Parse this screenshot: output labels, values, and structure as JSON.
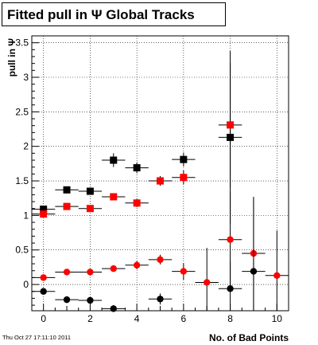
{
  "chart_data": {
    "type": "scatter",
    "title": "Fitted pull in  Ψ   Global Tracks",
    "xlabel": "No. of Bad Points",
    "ylabel": "pull in Ψ",
    "xlim": [
      -0.5,
      10.5
    ],
    "ylim": [
      -0.38,
      3.6
    ],
    "x_ticks": [
      0,
      2,
      4,
      6,
      8,
      10
    ],
    "y_ticks": [
      0,
      0.5,
      1,
      1.5,
      2,
      2.5,
      3,
      3.5
    ],
    "x_tick_labels": [
      "0",
      "2",
      "4",
      "6",
      "8",
      "10"
    ],
    "y_tick_labels": [
      "0",
      "0.5",
      "1",
      "1.5",
      "2",
      "2.5",
      "3",
      "3.5"
    ],
    "grid": true,
    "legend": "none",
    "series": [
      {
        "marker": "square",
        "color": "#000000",
        "x": [
          0,
          1,
          2,
          3,
          4,
          5,
          6,
          8
        ],
        "y": [
          1.09,
          1.37,
          1.35,
          1.8,
          1.69,
          1.5,
          1.81,
          2.13
        ],
        "yerr": [
          0.04,
          0.04,
          0.04,
          0.1,
          0.08,
          0.06,
          0.1,
          1.25
        ]
      },
      {
        "marker": "square",
        "color": "#ff0000",
        "x": [
          0,
          1,
          2,
          3,
          4,
          5,
          6,
          8
        ],
        "y": [
          1.02,
          1.13,
          1.1,
          1.27,
          1.18,
          1.5,
          1.55,
          2.31
        ],
        "yerr": [
          0.04,
          0.04,
          0.04,
          0.05,
          0.06,
          0.07,
          0.1,
          0.9
        ]
      },
      {
        "marker": "circle",
        "color": "#ff0000",
        "x": [
          0,
          1,
          2,
          3,
          4,
          5,
          6,
          7,
          8,
          9,
          10
        ],
        "y": [
          0.1,
          0.18,
          0.18,
          0.23,
          0.28,
          0.36,
          0.19,
          0.03,
          0.65,
          0.45,
          0.13
        ],
        "yerr": [
          0.03,
          0.03,
          0.03,
          0.04,
          0.06,
          0.07,
          0.12,
          0.5,
          0.7,
          0.8,
          0.65
        ]
      },
      {
        "marker": "circle",
        "color": "#000000",
        "x": [
          0,
          1,
          2,
          3,
          5,
          8,
          9
        ],
        "y": [
          -0.1,
          -0.22,
          -0.23,
          -0.35,
          -0.21,
          -0.06,
          0.19
        ],
        "yerr": [
          0.03,
          0.03,
          0.03,
          0.05,
          0.08,
          0.4,
          1.08
        ]
      }
    ]
  },
  "footer": {
    "timestamp": "Thu Oct 27 17:11:10 2011"
  }
}
